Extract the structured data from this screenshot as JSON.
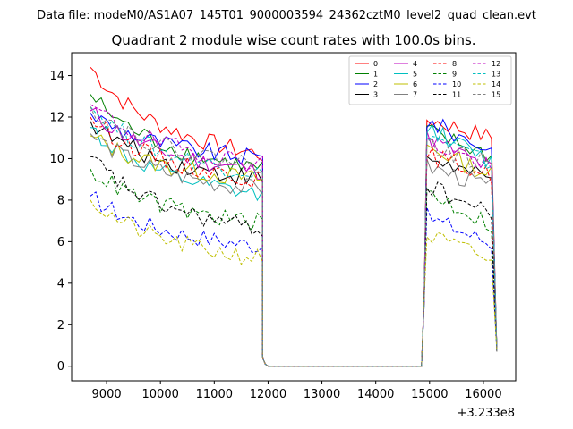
{
  "chart_data": {
    "type": "line",
    "suptitle": "Data file: modeM0/AS1A07_145T01_9000003594_24362cztM0_level2_quad_clean.evt",
    "title": "Quadrant 2 module wise count rates with 100.0s bins.",
    "xlabel": "",
    "ylabel": "",
    "x_offset_label": "+3.233e8",
    "xlim": [
      8350,
      16600
    ],
    "ylim": [
      -0.7,
      15.1
    ],
    "xticks": [
      9000,
      10000,
      11000,
      12000,
      13000,
      14000,
      15000,
      16000
    ],
    "xtick_labels": [
      "9000",
      "10000",
      "11000",
      "12000",
      "13000",
      "14000",
      "15000",
      "16000"
    ],
    "yticks": [
      0,
      2,
      4,
      6,
      8,
      10,
      12,
      14
    ],
    "ytick_labels": [
      "0",
      "2",
      "4",
      "6",
      "8",
      "10",
      "12",
      "14"
    ],
    "legend": {
      "placement": "top-right",
      "columns": 4
    },
    "series": [
      {
        "name": "0",
        "color": "#ff0000",
        "dash": "solid",
        "seg1_start": 14.4,
        "seg1_end": 10.2,
        "seg2": 11.9,
        "seg2_end": 11.0
      },
      {
        "name": "1",
        "color": "#008000",
        "dash": "solid",
        "seg1_start": 13.1,
        "seg1_end": 9.5,
        "seg2": 11.3,
        "seg2_end": 10.1
      },
      {
        "name": "2",
        "color": "#0000ff",
        "dash": "solid",
        "seg1_start": 12.2,
        "seg1_end": 10.0,
        "seg2": 11.8,
        "seg2_end": 10.4
      },
      {
        "name": "3",
        "color": "#000000",
        "dash": "solid",
        "seg1_start": 11.8,
        "seg1_end": 9.0,
        "seg2": 10.1,
        "seg2_end": 8.9
      },
      {
        "name": "4",
        "color": "#bf00bf",
        "dash": "solid",
        "seg1_start": 12.3,
        "seg1_end": 9.4,
        "seg2": 11.0,
        "seg2_end": 9.5
      },
      {
        "name": "5",
        "color": "#00bfbf",
        "dash": "solid",
        "seg1_start": 11.5,
        "seg1_end": 8.2,
        "seg2": 11.5,
        "seg2_end": 9.8
      },
      {
        "name": "6",
        "color": "#bfbf00",
        "dash": "solid",
        "seg1_start": 11.1,
        "seg1_end": 9.0,
        "seg2": 10.6,
        "seg2_end": 9.2
      },
      {
        "name": "7",
        "color": "#808080",
        "dash": "solid",
        "seg1_start": 11.2,
        "seg1_end": 8.5,
        "seg2": 9.6,
        "seg2_end": 8.6
      },
      {
        "name": "8",
        "color": "#ff0000",
        "dash": "dashed",
        "seg1_start": 12.0,
        "seg1_end": 9.0,
        "seg2": 10.2,
        "seg2_end": 9.2
      },
      {
        "name": "9",
        "color": "#008000",
        "dash": "dashed",
        "seg1_start": 9.5,
        "seg1_end": 6.9,
        "seg2": 8.4,
        "seg2_end": 6.8
      },
      {
        "name": "10",
        "color": "#0000ff",
        "dash": "dashed",
        "seg1_start": 8.2,
        "seg1_end": 5.8,
        "seg2": 7.2,
        "seg2_end": 5.9
      },
      {
        "name": "11",
        "color": "#000000",
        "dash": "dashed",
        "seg1_start": 10.1,
        "seg1_end": 6.6,
        "seg2": 8.7,
        "seg2_end": 7.3
      },
      {
        "name": "12",
        "color": "#bf00bf",
        "dash": "dashed",
        "seg1_start": 12.6,
        "seg1_end": 9.8,
        "seg2": 10.8,
        "seg2_end": 9.6
      },
      {
        "name": "13",
        "color": "#00bfbf",
        "dash": "dashed",
        "seg1_start": 12.5,
        "seg1_end": 9.3,
        "seg2": 11.2,
        "seg2_end": 9.7
      },
      {
        "name": "14",
        "color": "#bfbf00",
        "dash": "dashed",
        "seg1_start": 8.0,
        "seg1_end": 5.2,
        "seg2": 6.3,
        "seg2_end": 5.1
      },
      {
        "name": "15",
        "color": "#808080",
        "dash": "dashed",
        "seg1_start": 12.5,
        "seg1_end": 9.7,
        "seg2": 10.6,
        "seg2_end": 9.7
      }
    ],
    "time_profile": {
      "active1": [
        8700,
        11850
      ],
      "gap": [
        11950,
        14850
      ],
      "active2": [
        14950,
        16150
      ],
      "step": 100,
      "final_x": 16250,
      "final_y": 0.7
    }
  }
}
